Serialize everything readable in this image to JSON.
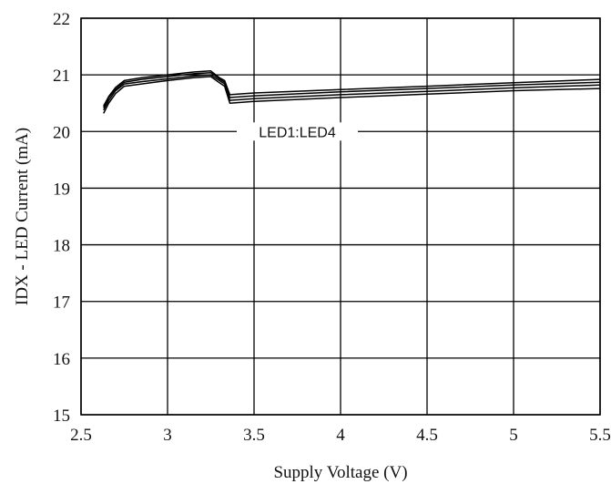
{
  "chart_data": {
    "type": "line",
    "xlabel": "Supply Voltage (V)",
    "ylabel": "IDX - LED Current  (mA)",
    "xlim": [
      2.5,
      5.5
    ],
    "ylim": [
      15,
      22
    ],
    "xticks": [
      2.5,
      3,
      3.5,
      4,
      4.5,
      5,
      5.5
    ],
    "xtick_labels": [
      "2.5",
      "3",
      "3.5",
      "4",
      "4.5",
      "5",
      "5.5"
    ],
    "yticks": [
      15,
      16,
      17,
      18,
      19,
      20,
      21,
      22
    ],
    "ytick_labels": [
      "15",
      "16",
      "17",
      "18",
      "19",
      "20",
      "21",
      "22"
    ],
    "grid": true,
    "annotation": "LED1:LED4",
    "series": [
      {
        "x": [
          2.63,
          2.66,
          2.7,
          2.75,
          2.85,
          3.0,
          3.15,
          3.25,
          3.3,
          3.33,
          3.36,
          3.5,
          4.0,
          4.5,
          5.0,
          5.5
        ],
        "y": [
          20.45,
          20.62,
          20.78,
          20.9,
          20.95,
          21.0,
          21.05,
          21.07,
          20.95,
          20.9,
          20.65,
          20.68,
          20.74,
          20.8,
          20.86,
          20.92
        ]
      },
      {
        "x": [
          2.63,
          2.66,
          2.7,
          2.75,
          2.85,
          3.0,
          3.15,
          3.25,
          3.3,
          3.33,
          3.36,
          3.5,
          4.0,
          4.5,
          5.0,
          5.5
        ],
        "y": [
          20.42,
          20.6,
          20.75,
          20.87,
          20.92,
          20.97,
          21.02,
          21.04,
          20.93,
          20.87,
          20.6,
          20.63,
          20.7,
          20.76,
          20.82,
          20.87
        ]
      },
      {
        "x": [
          2.63,
          2.66,
          2.7,
          2.75,
          2.85,
          3.0,
          3.15,
          3.25,
          3.3,
          3.33,
          3.36,
          3.5,
          4.0,
          4.5,
          5.0,
          5.5
        ],
        "y": [
          20.38,
          20.55,
          20.72,
          20.84,
          20.88,
          20.93,
          20.98,
          21.0,
          20.9,
          20.84,
          20.55,
          20.58,
          20.65,
          20.71,
          20.77,
          20.82
        ]
      },
      {
        "x": [
          2.63,
          2.66,
          2.7,
          2.75,
          2.85,
          3.0,
          3.15,
          3.25,
          3.3,
          3.33,
          3.36,
          3.5,
          4.0,
          4.5,
          5.0,
          5.5
        ],
        "y": [
          20.32,
          20.5,
          20.67,
          20.8,
          20.84,
          20.9,
          20.95,
          20.97,
          20.86,
          20.8,
          20.5,
          20.53,
          20.6,
          20.66,
          20.72,
          20.76
        ]
      }
    ]
  }
}
